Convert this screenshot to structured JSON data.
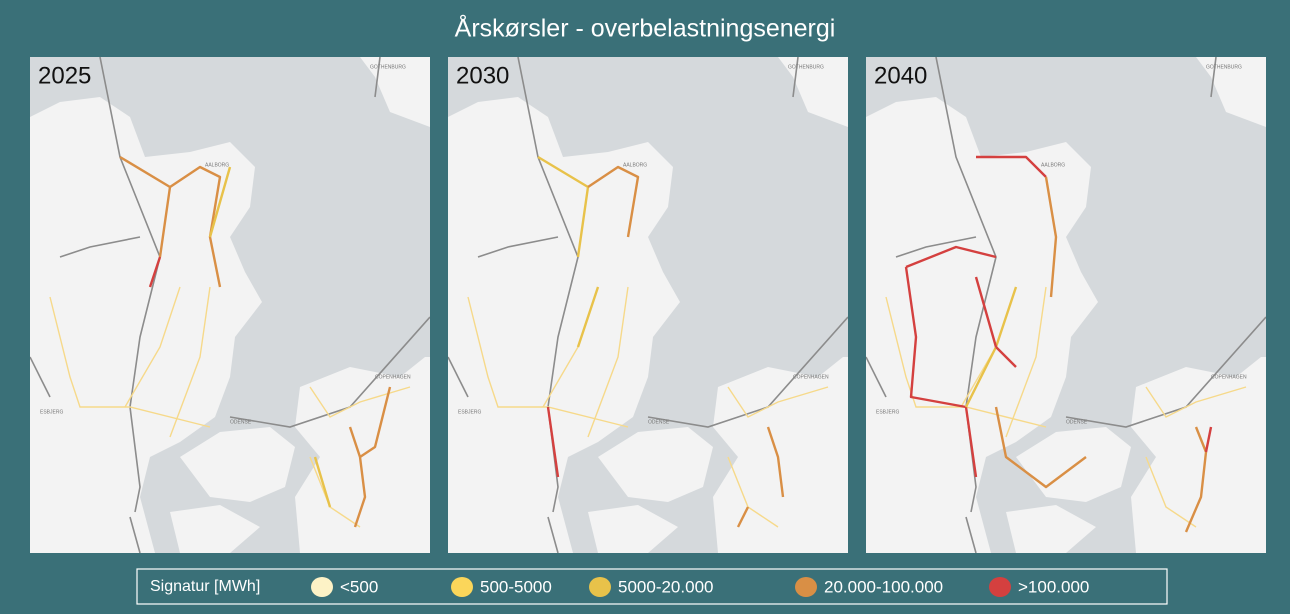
{
  "title": "Årskørsler - overbelastningsenergi",
  "panels": [
    {
      "label": "2025"
    },
    {
      "label": "2030"
    },
    {
      "label": "2040"
    }
  ],
  "map_labels": [
    "GOTHENBURG",
    "AALBORG",
    "ODENSE",
    "ESBJERG",
    "COPENHAGEN"
  ],
  "legend": {
    "title": "Signatur [MWh]",
    "items": [
      {
        "label": "<500",
        "color": "#fdf2c6"
      },
      {
        "label": "500-5000",
        "color": "#fbd65a"
      },
      {
        "label": "5000-20.000",
        "color": "#e8c24a"
      },
      {
        "label": "20.000-100.000",
        "color": "#d98f45"
      },
      {
        "label": ">100.000",
        "color": "#d4403f"
      }
    ]
  }
}
